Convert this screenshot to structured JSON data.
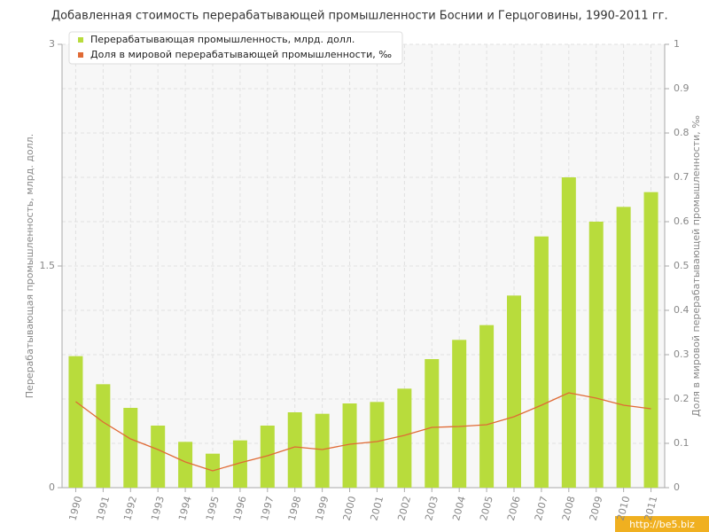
{
  "chart_data": {
    "type": "bar",
    "title": "Добавленная стоимость перерабатывающей промышленности Боснии и Герцоговины, 1990-2011 гг.",
    "y_label": "Перерабатывающая промышленность, млрд. долл.",
    "y2_label": "Доля в мировой перерабатывающей промышленности, ‰",
    "watermark": "http://be5.biz",
    "categories": [
      "1990",
      "1991",
      "1992",
      "1993",
      "1994",
      "1995",
      "1996",
      "1997",
      "1998",
      "1999",
      "2000",
      "2001",
      "2002",
      "2003",
      "2004",
      "2005",
      "2006",
      "2007",
      "2008",
      "2009",
      "2010",
      "2011"
    ],
    "series": [
      {
        "name": "Перерабатывающая промышленность, млрд. долл.",
        "color": "#b8dc3c",
        "type": "bar",
        "values": [
          0.89,
          0.7,
          0.54,
          0.42,
          0.31,
          0.23,
          0.32,
          0.42,
          0.51,
          0.5,
          0.57,
          0.58,
          0.67,
          0.87,
          1.0,
          1.1,
          1.3,
          1.7,
          2.1,
          1.8,
          1.9,
          2.0
        ]
      },
      {
        "name": "Доля в мировой перерабатывающей промышленности, ‰",
        "color": "#e06a35",
        "type": "line",
        "axis": "y2",
        "values": [
          0.194,
          0.148,
          0.11,
          0.086,
          0.058,
          0.038,
          0.056,
          0.072,
          0.092,
          0.086,
          0.098,
          0.104,
          0.118,
          0.136,
          0.138,
          0.142,
          0.16,
          0.186,
          0.214,
          0.202,
          0.186,
          0.178
        ]
      }
    ],
    "ylim": [
      0,
      3
    ],
    "yticks": [
      0,
      1.5,
      3
    ],
    "y2lim": [
      0,
      1
    ],
    "y2ticks": [
      0,
      0.1,
      0.2,
      0.3,
      0.4,
      0.5,
      0.6,
      0.7,
      0.8,
      0.9,
      1
    ],
    "grid": true
  }
}
